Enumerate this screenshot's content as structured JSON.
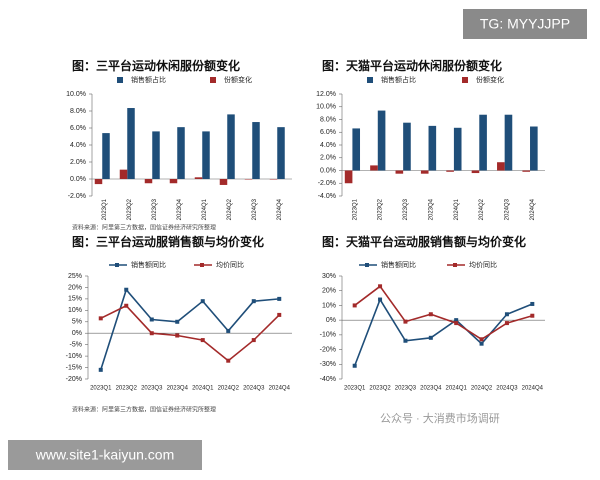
{
  "chart_data": [
    {
      "type": "bar",
      "title": "图：三平台运动休闲服份额变化",
      "categories": [
        "2023Q1",
        "2023Q2",
        "2023Q3",
        "2023Q4",
        "2024Q1",
        "2024Q2",
        "2024Q3",
        "2024Q4"
      ],
      "series": [
        {
          "name": "销售额占比",
          "color": "#1f4e79",
          "values": [
            5.4,
            8.35,
            5.6,
            6.1,
            5.6,
            7.6,
            6.7,
            6.1
          ]
        },
        {
          "name": "份额变化",
          "color": "#a32a2a",
          "values": [
            -0.6,
            1.1,
            -0.5,
            -0.5,
            0.2,
            -0.7,
            0.0,
            0.0
          ]
        }
      ],
      "ylim": [
        -2,
        10
      ],
      "yticks": [
        {
          "value": -2,
          "label": "-2.0%"
        },
        {
          "value": 0,
          "label": "0.0%"
        },
        {
          "value": 2,
          "label": "2.0%"
        },
        {
          "value": 4,
          "label": "4.0%"
        },
        {
          "value": 6,
          "label": "6.0%"
        },
        {
          "value": 8,
          "label": "8.0%"
        },
        {
          "value": 10,
          "label": "10.0%"
        }
      ]
    },
    {
      "type": "bar",
      "title": "图：天猫平台运动休闲服份额变化",
      "categories": [
        "2023Q1",
        "2023Q2",
        "2023Q3",
        "2023Q4",
        "2024Q1",
        "2024Q2",
        "2024Q3",
        "2024Q4"
      ],
      "series": [
        {
          "name": "销售额占比",
          "color": "#1f4e79",
          "values": [
            6.6,
            9.4,
            7.5,
            7.0,
            6.7,
            8.75,
            8.75,
            6.9
          ]
        },
        {
          "name": "份额变化",
          "color": "#a32a2a",
          "values": [
            -2.0,
            0.8,
            -0.5,
            -0.5,
            -0.2,
            -0.4,
            1.3,
            -0.2
          ]
        }
      ],
      "ylim": [
        -4,
        12
      ],
      "yticks": [
        {
          "value": -4,
          "label": "-4.0%"
        },
        {
          "value": -2,
          "label": "-2.0%"
        },
        {
          "value": 0,
          "label": "0.0%"
        },
        {
          "value": 2,
          "label": "2.0%"
        },
        {
          "value": 4,
          "label": "4.0%"
        },
        {
          "value": 6,
          "label": "6.0%"
        },
        {
          "value": 8,
          "label": "8.0%"
        },
        {
          "value": 10,
          "label": "10.0%"
        },
        {
          "value": 12,
          "label": "12.0%"
        }
      ]
    },
    {
      "type": "line",
      "title": "图：三平台运动服销售额与均价变化",
      "categories": [
        "2023Q1",
        "2023Q2",
        "2023Q3",
        "2023Q4",
        "2024Q1",
        "2024Q2",
        "2024Q3",
        "2024Q4"
      ],
      "series": [
        {
          "name": "销售额同比",
          "color": "#1f4e79",
          "values": [
            -16,
            19,
            6,
            5,
            14,
            1,
            14,
            15
          ]
        },
        {
          "name": "均价同比",
          "color": "#a32a2a",
          "values": [
            6.5,
            12,
            0,
            -1,
            -3,
            -12,
            -3,
            8
          ]
        }
      ],
      "ylim": [
        -20,
        25
      ],
      "yticks": [
        {
          "value": -20,
          "label": "-20%"
        },
        {
          "value": -15,
          "label": "-15%"
        },
        {
          "value": -10,
          "label": "-10%"
        },
        {
          "value": -5,
          "label": "-5%"
        },
        {
          "value": 0,
          "label": "0%"
        },
        {
          "value": 5,
          "label": "5%"
        },
        {
          "value": 10,
          "label": "10%"
        },
        {
          "value": 15,
          "label": "15%"
        },
        {
          "value": 20,
          "label": "20%"
        },
        {
          "value": 25,
          "label": "25%"
        }
      ]
    },
    {
      "type": "line",
      "title": "图：天猫平台运动服销售额与均价变化",
      "categories": [
        "2023Q1",
        "2023Q2",
        "2023Q3",
        "2023Q4",
        "2024Q1",
        "2024Q2",
        "2024Q3",
        "2024Q4"
      ],
      "series": [
        {
          "name": "销售额同比",
          "color": "#1f4e79",
          "values": [
            -31,
            14,
            -14,
            -12,
            0,
            -16,
            4,
            11
          ]
        },
        {
          "name": "均价同比",
          "color": "#a32a2a",
          "values": [
            10,
            23,
            -1,
            4,
            -2,
            -13,
            -2,
            3
          ]
        }
      ],
      "ylim": [
        -40,
        30
      ],
      "yticks": [
        {
          "value": -40,
          "label": "-40%"
        },
        {
          "value": -30,
          "label": "-30%"
        },
        {
          "value": -20,
          "label": "-20%"
        },
        {
          "value": -10,
          "label": "-10%"
        },
        {
          "value": 0,
          "label": "0%"
        },
        {
          "value": 10,
          "label": "10%"
        },
        {
          "value": 20,
          "label": "20%"
        },
        {
          "value": 30,
          "label": "30%"
        }
      ]
    }
  ],
  "source_notes": [
    "资料来源：阿里第三方数据，国信证券经济研究所整理",
    "资料来源：阿里第三方数据，国信证券经济研究所整理"
  ],
  "watermark_top": "TG: MYYJJPP",
  "watermark_bottom": "www.site1-kaiyun.com",
  "wechat_mark": "公众号 · 大消费市场调研"
}
